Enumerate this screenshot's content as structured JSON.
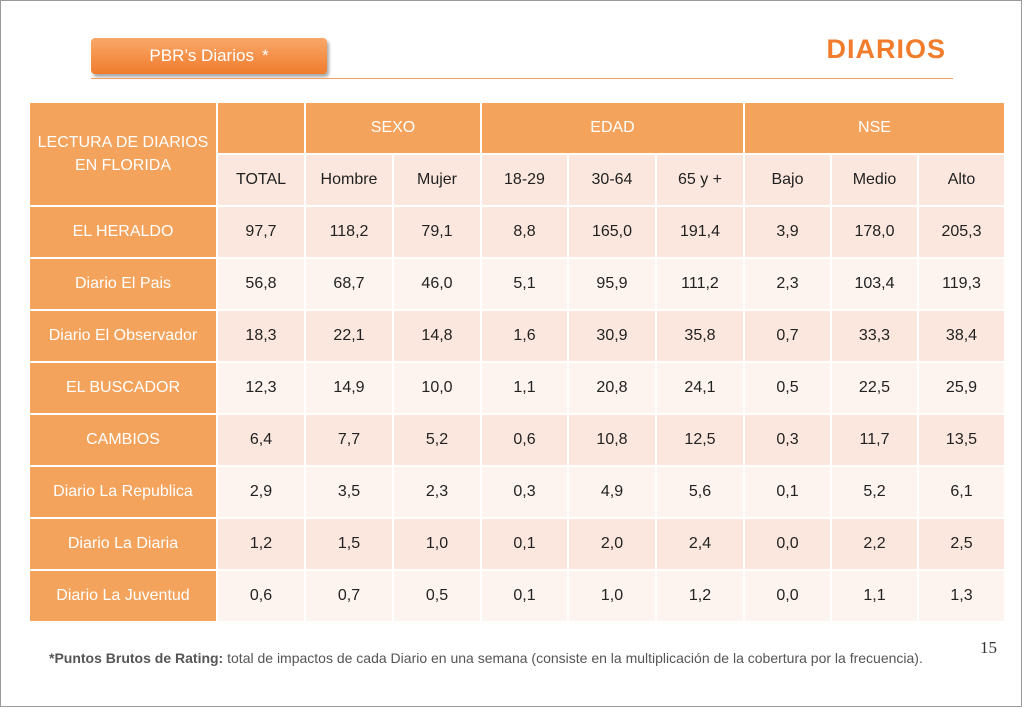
{
  "header": {
    "tag_label": "PBR’s Diarios",
    "tag_star": "*",
    "title": "DIARIOS"
  },
  "table": {
    "corner_label": "LECTURA DE DIARIOS EN FLORIDA",
    "groups": [
      "SEXO",
      "EDAD",
      "NSE"
    ],
    "columns": [
      "TOTAL",
      "Hombre",
      "Mujer",
      "18-29",
      "30-64",
      "65 y +",
      "Bajo",
      "Medio",
      "Alto"
    ],
    "rows": [
      {
        "name": "EL HERALDO",
        "values": [
          "97,7",
          "118,2",
          "79,1",
          "8,8",
          "165,0",
          "191,4",
          "3,9",
          "178,0",
          "205,3"
        ]
      },
      {
        "name": "Diario El Pais",
        "values": [
          "56,8",
          "68,7",
          "46,0",
          "5,1",
          "95,9",
          "111,2",
          "2,3",
          "103,4",
          "119,3"
        ]
      },
      {
        "name": "Diario El Observador",
        "values": [
          "18,3",
          "22,1",
          "14,8",
          "1,6",
          "30,9",
          "35,8",
          "0,7",
          "33,3",
          "38,4"
        ]
      },
      {
        "name": "EL BUSCADOR",
        "values": [
          "12,3",
          "14,9",
          "10,0",
          "1,1",
          "20,8",
          "24,1",
          "0,5",
          "22,5",
          "25,9"
        ]
      },
      {
        "name": "CAMBIOS",
        "values": [
          "6,4",
          "7,7",
          "5,2",
          "0,6",
          "10,8",
          "12,5",
          "0,3",
          "11,7",
          "13,5"
        ]
      },
      {
        "name": "Diario La Republica",
        "values": [
          "2,9",
          "3,5",
          "2,3",
          "0,3",
          "4,9",
          "5,6",
          "0,1",
          "5,2",
          "6,1"
        ]
      },
      {
        "name": "Diario La Diaria",
        "values": [
          "1,2",
          "1,5",
          "1,0",
          "0,1",
          "2,0",
          "2,4",
          "0,0",
          "2,2",
          "2,5"
        ]
      },
      {
        "name": "Diario La Juventud",
        "values": [
          "0,6",
          "0,7",
          "0,5",
          "0,1",
          "1,0",
          "1,2",
          "0,0",
          "1,1",
          "1,3"
        ]
      }
    ]
  },
  "footnote": {
    "label": "*Puntos Brutos de Rating:",
    "text": " total de impactos de cada Diario en una semana (consiste en la multiplicación de la cobertura por la frecuencia)."
  },
  "page_number": "15",
  "colors": {
    "accent": "#f07c2c",
    "header_fill": "#f4a35c",
    "cell_light": "#fbe7de",
    "cell_lighter": "#fdf3ef"
  }
}
